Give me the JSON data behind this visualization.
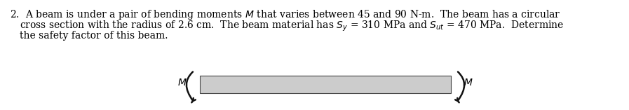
{
  "background_color": "#ffffff",
  "text_color": "#000000",
  "beam_fill_color": "#cccccc",
  "beam_edge_color": "#444444",
  "bracket_color": "#111111",
  "font_size": 10.0,
  "fig_width": 8.97,
  "fig_height": 1.57,
  "dpi": 100
}
